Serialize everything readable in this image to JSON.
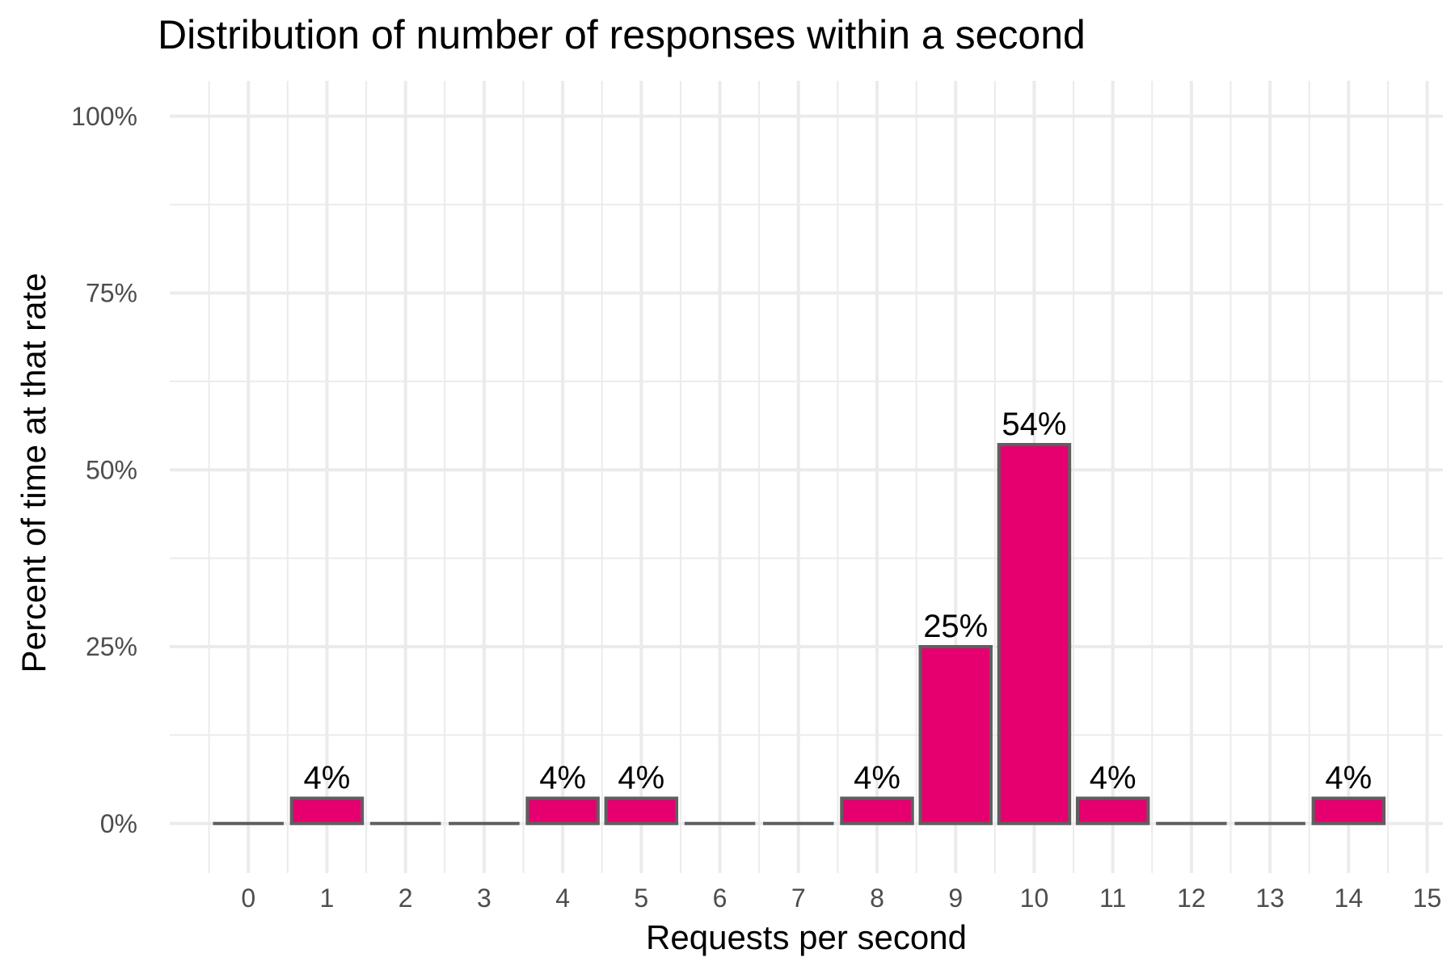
{
  "chart_data": {
    "type": "bar",
    "title": "Distribution of number of responses within a second",
    "xlabel": "Requests per second",
    "ylabel": "Percent of time at that rate",
    "categories": [
      "0",
      "1",
      "2",
      "3",
      "4",
      "5",
      "6",
      "7",
      "8",
      "9",
      "10",
      "11",
      "12",
      "13",
      "14"
    ],
    "x_ticks": [
      "0",
      "1",
      "2",
      "3",
      "4",
      "5",
      "6",
      "7",
      "8",
      "9",
      "10",
      "11",
      "12",
      "13",
      "14",
      "15"
    ],
    "y_ticks": [
      "0%",
      "25%",
      "50%",
      "75%",
      "100%"
    ],
    "values": [
      0,
      3.57,
      0,
      0,
      3.57,
      3.57,
      0,
      0,
      3.57,
      25,
      53.57,
      3.57,
      0,
      0,
      3.57
    ],
    "data_labels": [
      "",
      "4%",
      "",
      "",
      "4%",
      "4%",
      "",
      "",
      "4%",
      "25%",
      "54%",
      "4%",
      "",
      "",
      "4%"
    ],
    "ylim": [
      0,
      100
    ],
    "xlim": [
      0,
      15
    ],
    "grid": true,
    "colors": {
      "bar_fill": "#E6006F",
      "bar_outline": "#5f5f5f",
      "grid": "#EBEBEB",
      "tick_text": "#4D4D4D",
      "text": "#000000"
    }
  }
}
